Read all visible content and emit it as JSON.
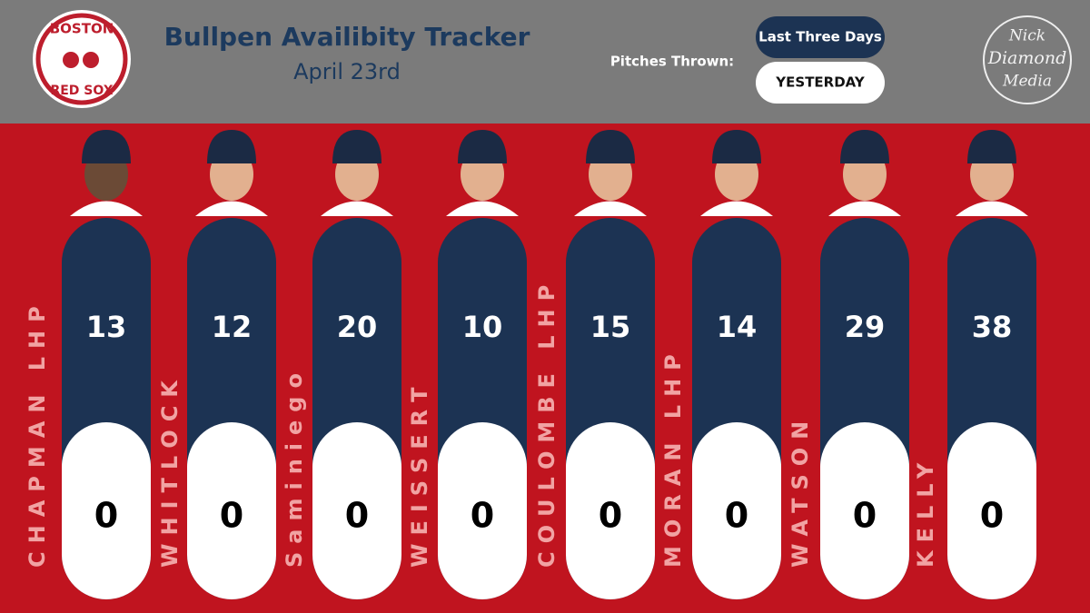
{
  "header": {
    "title": "Bullpen Availibity Tracker",
    "date": "April 23rd"
  },
  "logo": {
    "top": "BOSTON",
    "bottom": "RED SOX"
  },
  "watermark": [
    "Nick",
    "Diamond",
    "Media"
  ],
  "legend": {
    "label": "Pitches Thrown:",
    "items": [
      "Last Three Days",
      "YESTERDAY"
    ]
  },
  "players": [
    {
      "name": "CHAPMAN LHP",
      "last_three_days": "13",
      "yesterday": "0"
    },
    {
      "name": "WHITLOCK",
      "last_three_days": "12",
      "yesterday": "0"
    },
    {
      "name": "Saminiego",
      "last_three_days": "20",
      "yesterday": "0"
    },
    {
      "name": "WEISSERT",
      "last_three_days": "10",
      "yesterday": "0"
    },
    {
      "name": "COULOMBE LHP",
      "last_three_days": "15",
      "yesterday": "0"
    },
    {
      "name": "MORAN LHP",
      "last_three_days": "14",
      "yesterday": "0"
    },
    {
      "name": "WATSON",
      "last_three_days": "29",
      "yesterday": "0"
    },
    {
      "name": "KELLY",
      "last_three_days": "38",
      "yesterday": "0"
    }
  ]
}
